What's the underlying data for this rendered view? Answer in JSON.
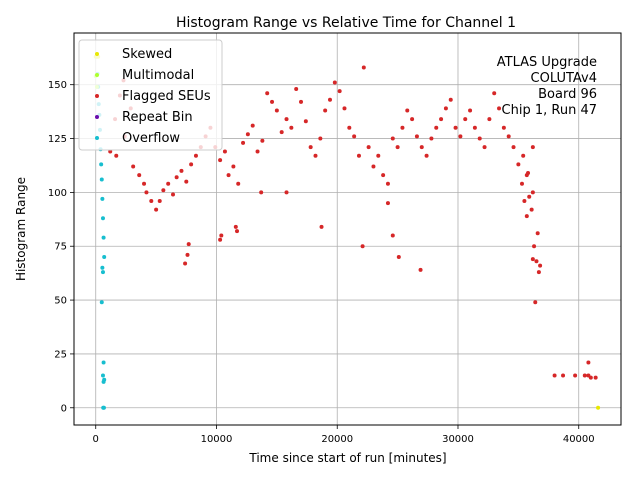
{
  "chart_data": {
    "type": "scatter",
    "title": "Histogram Range vs Relative Time for Channel 1",
    "xlabel": "Time since start of run [minutes]",
    "ylabel": "Histogram Range",
    "xlim": [
      -1800,
      43500
    ],
    "ylim": [
      -8,
      174
    ],
    "xticks": [
      0,
      10000,
      20000,
      30000,
      40000
    ],
    "yticks": [
      0,
      25,
      50,
      75,
      100,
      125,
      150
    ],
    "grid": true,
    "legend_position": "top-left",
    "annotation_lines": [
      "ATLAS Upgrade",
      "COLUTAv4",
      "Board 96",
      "Chip 1, Run 47"
    ],
    "series": [
      {
        "name": "Skewed",
        "color": "#e8e800",
        "points": [
          [
            41600,
            0
          ],
          [
            0,
            163
          ],
          [
            200,
            163
          ]
        ]
      },
      {
        "name": "Multimodal",
        "color": "#adff2f",
        "points": [
          [
            0,
            154
          ],
          [
            100,
            149
          ]
        ]
      },
      {
        "name": "Flagged SEUs",
        "color": "#d62728",
        "points": [
          [
            38000,
            15
          ],
          [
            38700,
            15
          ],
          [
            39700,
            15
          ],
          [
            40500,
            15
          ],
          [
            40800,
            15
          ],
          [
            41000,
            14
          ],
          [
            41400,
            14
          ],
          [
            40800,
            21
          ],
          [
            36400,
            49
          ],
          [
            36700,
            63
          ],
          [
            36800,
            66
          ],
          [
            36500,
            68
          ],
          [
            36200,
            69
          ],
          [
            36300,
            75
          ],
          [
            36600,
            81
          ],
          [
            35700,
            89
          ],
          [
            36100,
            92
          ],
          [
            35500,
            96
          ],
          [
            35900,
            98
          ],
          [
            36200,
            100
          ],
          [
            35300,
            104
          ],
          [
            35700,
            108
          ],
          [
            26900,
            64
          ],
          [
            22100,
            75
          ],
          [
            25100,
            70
          ],
          [
            24600,
            80
          ],
          [
            24200,
            95
          ],
          [
            7400,
            67
          ],
          [
            7600,
            71
          ],
          [
            7700,
            76
          ],
          [
            10300,
            78
          ],
          [
            10400,
            80
          ],
          [
            11700,
            82
          ],
          [
            11600,
            84
          ],
          [
            18700,
            84
          ],
          [
            13700,
            100
          ],
          [
            15800,
            100
          ],
          [
            1200,
            119
          ],
          [
            1600,
            134
          ],
          [
            2000,
            145
          ],
          [
            2300,
            152
          ],
          [
            2400,
            126
          ],
          [
            2900,
            139
          ],
          [
            1700,
            117
          ],
          [
            3100,
            112
          ],
          [
            3600,
            108
          ],
          [
            4000,
            104
          ],
          [
            4200,
            100
          ],
          [
            4600,
            96
          ],
          [
            5000,
            92
          ],
          [
            5300,
            96
          ],
          [
            5600,
            101
          ],
          [
            6000,
            104
          ],
          [
            6400,
            99
          ],
          [
            6700,
            107
          ],
          [
            7100,
            110
          ],
          [
            7500,
            105
          ],
          [
            7900,
            113
          ],
          [
            8300,
            117
          ],
          [
            8700,
            121
          ],
          [
            9100,
            126
          ],
          [
            9500,
            130
          ],
          [
            9900,
            121
          ],
          [
            10300,
            115
          ],
          [
            10700,
            119
          ],
          [
            11000,
            108
          ],
          [
            11400,
            112
          ],
          [
            11800,
            104
          ],
          [
            12200,
            123
          ],
          [
            12600,
            127
          ],
          [
            13000,
            131
          ],
          [
            13400,
            119
          ],
          [
            13800,
            124
          ],
          [
            14200,
            146
          ],
          [
            14600,
            142
          ],
          [
            15000,
            138
          ],
          [
            15400,
            128
          ],
          [
            15800,
            134
          ],
          [
            16200,
            130
          ],
          [
            16600,
            148
          ],
          [
            17000,
            142
          ],
          [
            17400,
            133
          ],
          [
            17800,
            121
          ],
          [
            18200,
            117
          ],
          [
            18600,
            125
          ],
          [
            19000,
            138
          ],
          [
            19400,
            143
          ],
          [
            19800,
            151
          ],
          [
            20200,
            147
          ],
          [
            20600,
            139
          ],
          [
            21000,
            130
          ],
          [
            21400,
            126
          ],
          [
            21800,
            117
          ],
          [
            22200,
            158
          ],
          [
            22600,
            121
          ],
          [
            23000,
            112
          ],
          [
            23400,
            117
          ],
          [
            23800,
            108
          ],
          [
            24200,
            104
          ],
          [
            24600,
            125
          ],
          [
            25000,
            121
          ],
          [
            25400,
            130
          ],
          [
            25800,
            138
          ],
          [
            26200,
            134
          ],
          [
            26600,
            126
          ],
          [
            27000,
            121
          ],
          [
            27400,
            117
          ],
          [
            27800,
            125
          ],
          [
            28200,
            130
          ],
          [
            28600,
            134
          ],
          [
            29000,
            139
          ],
          [
            29400,
            143
          ],
          [
            29800,
            130
          ],
          [
            30200,
            126
          ],
          [
            30600,
            134
          ],
          [
            31000,
            138
          ],
          [
            31400,
            130
          ],
          [
            31800,
            125
          ],
          [
            32200,
            121
          ],
          [
            32600,
            134
          ],
          [
            33000,
            146
          ],
          [
            33400,
            139
          ],
          [
            33800,
            130
          ],
          [
            34200,
            126
          ],
          [
            34600,
            121
          ],
          [
            35000,
            113
          ],
          [
            35400,
            117
          ],
          [
            35800,
            109
          ],
          [
            36200,
            121
          ]
        ]
      },
      {
        "name": "Repeat Bin",
        "color": "#6a0dad",
        "points": []
      },
      {
        "name": "Overflow",
        "color": "#17becf",
        "points": [
          [
            100,
            163
          ],
          [
            150,
            155
          ],
          [
            200,
            149
          ],
          [
            250,
            141
          ],
          [
            300,
            136
          ],
          [
            350,
            129
          ],
          [
            400,
            120
          ],
          [
            450,
            113
          ],
          [
            500,
            106
          ],
          [
            550,
            97
          ],
          [
            600,
            88
          ],
          [
            650,
            79
          ],
          [
            700,
            70
          ],
          [
            600,
            63
          ],
          [
            550,
            65
          ],
          [
            500,
            49
          ],
          [
            650,
            21
          ],
          [
            600,
            15
          ],
          [
            700,
            13
          ],
          [
            650,
            12
          ],
          [
            620,
            0
          ],
          [
            680,
            0
          ]
        ]
      }
    ]
  }
}
